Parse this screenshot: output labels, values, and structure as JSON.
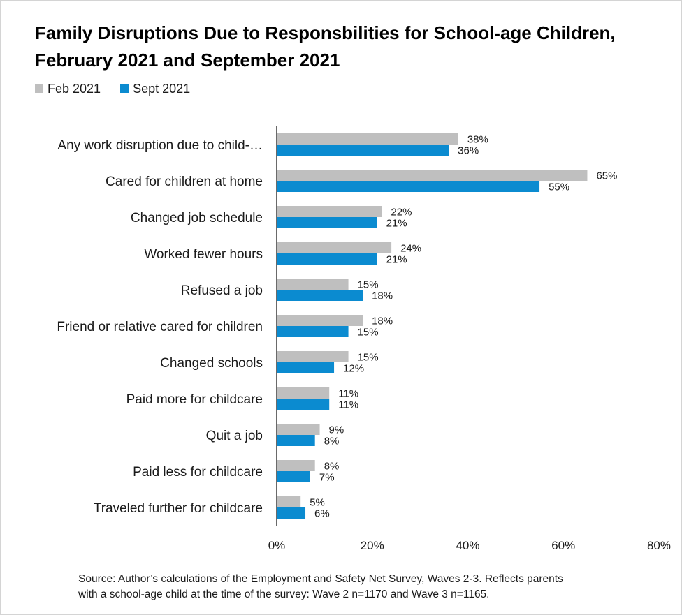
{
  "chart_data": {
    "type": "bar",
    "orientation": "horizontal",
    "title": "Family Disruptions Due to Responsbilities for School-age Children, February 2021 and September 2021",
    "xlim": [
      0,
      80
    ],
    "xticks": [
      0,
      20,
      40,
      60,
      80
    ],
    "unit": "%",
    "grid": false,
    "legend": "top-left",
    "categories": [
      "Any work disruption due to child-…",
      "Cared for children at home",
      "Changed job schedule",
      "Worked fewer hours",
      "Refused a job",
      "Friend or relative cared for children",
      "Changed schools",
      "Paid more for childcare",
      "Quit a job",
      "Paid less for childcare",
      "Traveled further for childcare"
    ],
    "series": [
      {
        "name": "Feb 2021",
        "color": "#BFBFBF",
        "values": [
          38,
          65,
          22,
          24,
          15,
          18,
          15,
          11,
          9,
          8,
          5
        ]
      },
      {
        "name": "Sept 2021",
        "color": "#0B8BD0",
        "values": [
          36,
          55,
          21,
          21,
          18,
          15,
          12,
          11,
          8,
          7,
          6
        ]
      }
    ],
    "source_lines": [
      "Source: Author’s calculations of the Employment and Safety Net Survey, Waves 2-3. Reflects parents",
      "with a school-age child at the time of the survey: Wave 2 n=1170 and Wave 3 n=1165."
    ]
  }
}
